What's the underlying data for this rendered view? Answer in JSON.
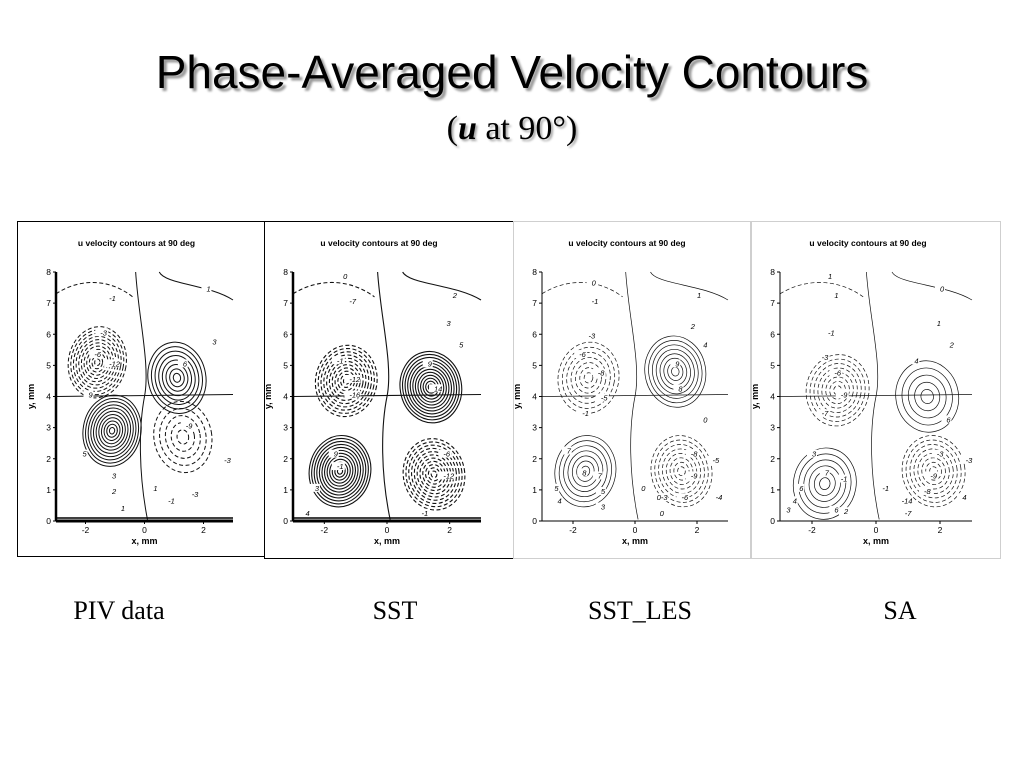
{
  "slide": {
    "title": "Phase-Averaged Velocity Contours",
    "subtitle_var": "u",
    "subtitle_rest": " at 90°)",
    "subtitle_open": "("
  },
  "chart_data": [
    {
      "type": "contour",
      "caption": "PIV data",
      "title": "u velocity contours at 90 deg",
      "xlabel": "x, mm",
      "ylabel": "y, mm",
      "xticks": [
        -2,
        0,
        2
      ],
      "yticks": [
        0,
        1,
        2,
        3,
        4,
        5,
        6,
        7,
        8
      ],
      "xlim": [
        -3,
        3
      ],
      "ylim": [
        0,
        8
      ],
      "vortices": [
        {
          "x": -1.1,
          "y": 2.9,
          "strength": 12
        },
        {
          "x": 1.1,
          "y": 4.6,
          "strength": 9
        },
        {
          "x": -1.6,
          "y": 5.1,
          "strength": -12
        },
        {
          "x": 1.3,
          "y": 2.7,
          "strength": -6
        }
      ],
      "contour_labels": [
        {
          "text": "1",
          "x": 2.1,
          "y": 7.4
        },
        {
          "text": "-1",
          "x": -1.2,
          "y": 7.1
        },
        {
          "text": "-3",
          "x": -1.5,
          "y": 6.0
        },
        {
          "text": "-6",
          "x": -1.7,
          "y": 5.3
        },
        {
          "text": "-12",
          "x": -1.2,
          "y": 5.0
        },
        {
          "text": "6",
          "x": 1.3,
          "y": 5.0
        },
        {
          "text": "3",
          "x": 2.3,
          "y": 5.7
        },
        {
          "text": "9",
          "x": -1.9,
          "y": 4.0
        },
        {
          "text": "-9",
          "x": 1.4,
          "y": 3.0
        },
        {
          "text": "-3",
          "x": 2.7,
          "y": 1.9
        },
        {
          "text": "5",
          "x": -2.1,
          "y": 2.1
        },
        {
          "text": "3",
          "x": -1.1,
          "y": 1.4
        },
        {
          "text": "2",
          "x": -1.1,
          "y": 0.9
        },
        {
          "text": "1",
          "x": 0.3,
          "y": 1.0
        },
        {
          "text": "-3",
          "x": 1.6,
          "y": 0.8
        },
        {
          "text": "-1",
          "x": 0.8,
          "y": 0.6
        },
        {
          "text": "1",
          "x": -0.8,
          "y": 0.35
        }
      ]
    },
    {
      "type": "contour",
      "caption": "SST",
      "title": "u velocity contours at 90 deg",
      "xlabel": "x, mm",
      "ylabel": "y, mm",
      "xticks": [
        -2,
        0,
        2
      ],
      "yticks": [
        0,
        1,
        2,
        3,
        4,
        5,
        6,
        7,
        8
      ],
      "xlim": [
        -3,
        3
      ],
      "ylim": [
        0,
        8
      ],
      "vortices": [
        {
          "x": -1.5,
          "y": 1.6,
          "strength": 14
        },
        {
          "x": 1.4,
          "y": 4.3,
          "strength": 14
        },
        {
          "x": -1.3,
          "y": 4.5,
          "strength": -12
        },
        {
          "x": 1.5,
          "y": 1.5,
          "strength": -12
        }
      ],
      "contour_labels": [
        {
          "text": "0",
          "x": -1.4,
          "y": 7.8
        },
        {
          "text": "2",
          "x": 2.1,
          "y": 7.2
        },
        {
          "text": "-7",
          "x": -1.2,
          "y": 7.0
        },
        {
          "text": "3",
          "x": 1.9,
          "y": 6.3
        },
        {
          "text": "5",
          "x": 2.3,
          "y": 5.6
        },
        {
          "text": "9",
          "x": 1.3,
          "y": 5.0
        },
        {
          "text": "14",
          "x": 1.5,
          "y": 4.2
        },
        {
          "text": "-1",
          "x": -1.6,
          "y": 5.1
        },
        {
          "text": "-12",
          "x": -1.2,
          "y": 4.5
        },
        {
          "text": "-16",
          "x": -1.2,
          "y": 4.0
        },
        {
          "text": "9",
          "x": -1.7,
          "y": 2.1
        },
        {
          "text": "-1",
          "x": -1.6,
          "y": 1.7
        },
        {
          "text": "-6",
          "x": 1.8,
          "y": 2.1
        },
        {
          "text": "-12",
          "x": 1.8,
          "y": 1.4
        },
        {
          "text": "3",
          "x": -2.3,
          "y": 1.0
        },
        {
          "text": "4",
          "x": -2.6,
          "y": 0.2
        },
        {
          "text": "-1",
          "x": 1.1,
          "y": 0.2
        }
      ]
    },
    {
      "type": "contour",
      "caption": "SST_LES",
      "title": "u velocity contours at 90 deg",
      "xlabel": "x, mm",
      "ylabel": "y, mm",
      "xticks": [
        -2,
        0,
        2
      ],
      "yticks": [
        0,
        1,
        2,
        3,
        4,
        5,
        6,
        7,
        8
      ],
      "xlim": [
        -3,
        3
      ],
      "ylim": [
        0,
        8
      ],
      "vortices": [
        {
          "x": -1.6,
          "y": 1.6,
          "strength": 8
        },
        {
          "x": 1.3,
          "y": 4.8,
          "strength": 9
        },
        {
          "x": -1.5,
          "y": 4.6,
          "strength": -8
        },
        {
          "x": 1.5,
          "y": 1.6,
          "strength": -9
        }
      ],
      "contour_labels": [
        {
          "text": "0",
          "x": -1.4,
          "y": 7.6
        },
        {
          "text": "1",
          "x": 2.0,
          "y": 7.2
        },
        {
          "text": "-1",
          "x": -1.4,
          "y": 7.0
        },
        {
          "text": "2",
          "x": 1.8,
          "y": 6.2
        },
        {
          "text": "4",
          "x": 2.2,
          "y": 5.6
        },
        {
          "text": "-3",
          "x": -1.5,
          "y": 5.9
        },
        {
          "text": "-6",
          "x": -1.8,
          "y": 5.3
        },
        {
          "text": "-8",
          "x": -1.2,
          "y": 4.7
        },
        {
          "text": "9",
          "x": 1.3,
          "y": 5.0
        },
        {
          "text": "8",
          "x": 1.4,
          "y": 4.2
        },
        {
          "text": "-5",
          "x": -1.1,
          "y": 3.9
        },
        {
          "text": "-1",
          "x": -1.7,
          "y": 3.4
        },
        {
          "text": "0",
          "x": 2.2,
          "y": 3.2
        },
        {
          "text": "7",
          "x": -2.2,
          "y": 2.2
        },
        {
          "text": "8",
          "x": -1.7,
          "y": 1.5
        },
        {
          "text": "7",
          "x": -1.2,
          "y": 1.4
        },
        {
          "text": "5",
          "x": -1.1,
          "y": 0.9
        },
        {
          "text": "5",
          "x": -2.6,
          "y": 1.0
        },
        {
          "text": "4",
          "x": -2.5,
          "y": 0.6
        },
        {
          "text": "-8",
          "x": 1.8,
          "y": 2.1
        },
        {
          "text": "-9",
          "x": 1.8,
          "y": 1.4
        },
        {
          "text": "-5",
          "x": 2.5,
          "y": 1.9
        },
        {
          "text": "-6",
          "x": 1.5,
          "y": 0.7
        },
        {
          "text": "-4",
          "x": 2.6,
          "y": 0.7
        },
        {
          "text": "0",
          "x": 0.2,
          "y": 1.0
        },
        {
          "text": "0-3",
          "x": 0.7,
          "y": 0.7
        },
        {
          "text": "3",
          "x": -1.1,
          "y": 0.4
        },
        {
          "text": "0",
          "x": 0.8,
          "y": 0.2
        }
      ]
    },
    {
      "type": "contour",
      "caption": "SA",
      "title": "u velocity contours at 90 deg",
      "xlabel": "x, mm",
      "ylabel": "y, mm",
      "xticks": [
        -2,
        0,
        2
      ],
      "yticks": [
        0,
        1,
        2,
        3,
        4,
        5,
        6,
        7,
        8
      ],
      "xlim": [
        -3,
        3
      ],
      "ylim": [
        0,
        8
      ],
      "vortices": [
        {
          "x": -1.6,
          "y": 1.2,
          "strength": 7
        },
        {
          "x": 1.6,
          "y": 4.0,
          "strength": 6
        },
        {
          "x": -1.2,
          "y": 4.2,
          "strength": -9
        },
        {
          "x": 1.8,
          "y": 1.6,
          "strength": -9
        }
      ],
      "contour_labels": [
        {
          "text": "1",
          "x": -1.5,
          "y": 7.8
        },
        {
          "text": "0",
          "x": 2.0,
          "y": 7.4
        },
        {
          "text": "1",
          "x": -1.3,
          "y": 7.2
        },
        {
          "text": "1",
          "x": 1.9,
          "y": 6.3
        },
        {
          "text": "2",
          "x": 2.3,
          "y": 5.6
        },
        {
          "text": "-1",
          "x": -1.5,
          "y": 6.0
        },
        {
          "text": "-3",
          "x": -1.7,
          "y": 5.2
        },
        {
          "text": "-6",
          "x": -1.3,
          "y": 4.7
        },
        {
          "text": "-9",
          "x": -1.1,
          "y": 4.0
        },
        {
          "text": "-7",
          "x": -1.7,
          "y": 3.4
        },
        {
          "text": "4",
          "x": 1.2,
          "y": 5.1
        },
        {
          "text": "6",
          "x": 2.2,
          "y": 3.2
        },
        {
          "text": "3",
          "x": -2.0,
          "y": 2.1
        },
        {
          "text": "7",
          "x": -1.6,
          "y": 1.5
        },
        {
          "text": "-1",
          "x": -1.1,
          "y": 1.3
        },
        {
          "text": "6",
          "x": -2.4,
          "y": 1.0
        },
        {
          "text": "4",
          "x": -2.6,
          "y": 0.6
        },
        {
          "text": "3",
          "x": -2.8,
          "y": 0.3
        },
        {
          "text": "6",
          "x": -1.3,
          "y": 0.3
        },
        {
          "text": "2",
          "x": -1.0,
          "y": 0.25
        },
        {
          "text": "-3",
          "x": 1.9,
          "y": 2.1
        },
        {
          "text": "-3",
          "x": 2.8,
          "y": 1.9
        },
        {
          "text": "-9",
          "x": 1.7,
          "y": 1.4
        },
        {
          "text": "-8",
          "x": 1.5,
          "y": 0.9
        },
        {
          "text": "4",
          "x": 2.7,
          "y": 0.7
        },
        {
          "text": "-1",
          "x": 0.2,
          "y": 1.0
        },
        {
          "text": "-14",
          "x": 0.8,
          "y": 0.6
        },
        {
          "text": "-7",
          "x": 0.9,
          "y": 0.2
        }
      ]
    }
  ]
}
